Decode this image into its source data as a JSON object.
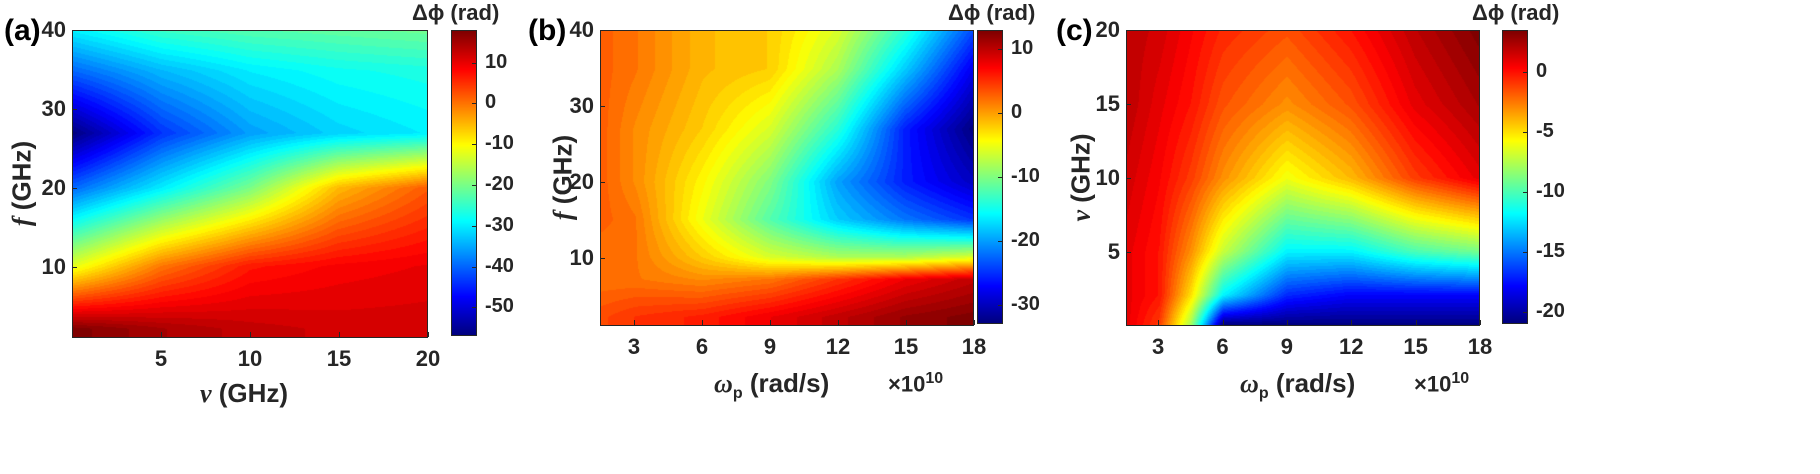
{
  "colormap": "jet",
  "chart_data": [
    {
      "panel_label": "(a)",
      "type": "heatmap",
      "xlabel_symbol": "ν",
      "xlabel_unit": " (GHz)",
      "ylabel_symbol": "f",
      "ylabel_unit": " (GHz)",
      "xlim": [
        0,
        20
      ],
      "ylim": [
        1,
        40
      ],
      "xticks": [
        5,
        10,
        15,
        20
      ],
      "yticks": [
        10,
        20,
        30,
        40
      ],
      "colorbar_label": "Δϕ (rad)",
      "clim": [
        -57,
        18
      ],
      "colorbar_ticks": [
        10,
        0,
        -10,
        -20,
        -30,
        -40,
        -50
      ],
      "x_multiplier": "",
      "z_samples": {
        "x": [
          0,
          5,
          10,
          15,
          20
        ],
        "y": [
          2,
          10,
          20,
          27,
          35,
          40
        ],
        "z": [
          [
            18,
            15,
            13,
            12,
            12
          ],
          [
            -12,
            0,
            7,
            9,
            10
          ],
          [
            -40,
            -30,
            -20,
            -5,
            2
          ],
          [
            -57,
            -44,
            -36,
            -32,
            -30
          ],
          [
            -40,
            -34,
            -30,
            -28,
            -27
          ],
          [
            -30,
            -25,
            -23,
            -22,
            -21
          ]
        ]
      }
    },
    {
      "panel_label": "(b)",
      "type": "heatmap",
      "xlabel_symbol": "ω",
      "xlabel_sub": "p",
      "xlabel_unit": " (rad/s)",
      "ylabel_symbol": "f",
      "ylabel_unit": " (GHz)",
      "xlim": [
        1.5,
        18
      ],
      "ylim": [
        1,
        40
      ],
      "xticks": [
        3,
        6,
        9,
        12,
        15,
        18
      ],
      "yticks": [
        10,
        20,
        30,
        40
      ],
      "colorbar_label": "Δϕ (rad)",
      "clim": [
        -33,
        13
      ],
      "colorbar_ticks": [
        10,
        0,
        -10,
        -20,
        -30
      ],
      "x_multiplier": "×10",
      "x_multiplier_exp": "10",
      "z_samples": {
        "x": [
          1.5,
          3,
          6,
          9,
          12,
          15,
          18
        ],
        "y": [
          2,
          7,
          10,
          15,
          20,
          27,
          35,
          40
        ],
        "z": [
          [
            4,
            5,
            6,
            8,
            10,
            12,
            13
          ],
          [
            2,
            2,
            1,
            2,
            5,
            8,
            10
          ],
          [
            2,
            2,
            -2,
            -6,
            -8,
            -8,
            -6
          ],
          [
            3,
            2,
            -5,
            -12,
            -18,
            -22,
            -25
          ],
          [
            3,
            1,
            -4,
            -10,
            -20,
            -26,
            -30
          ],
          [
            3,
            1,
            -2,
            -6,
            -14,
            -26,
            -33
          ],
          [
            3,
            2,
            -1,
            -2,
            -8,
            -18,
            -28
          ],
          [
            3,
            2,
            -1,
            -2,
            -6,
            -14,
            -24
          ]
        ]
      }
    },
    {
      "panel_label": "(c)",
      "type": "heatmap",
      "xlabel_symbol": "ω",
      "xlabel_sub": "p",
      "xlabel_unit": " (rad/s)",
      "ylabel_symbol": "ν",
      "ylabel_unit": " (GHz)",
      "xlim": [
        1.5,
        18
      ],
      "ylim": [
        0,
        20
      ],
      "xticks": [
        3,
        6,
        9,
        12,
        15,
        18
      ],
      "yticks": [
        5,
        10,
        15,
        20
      ],
      "colorbar_label": "Δϕ (rad)",
      "clim": [
        -21,
        3.5
      ],
      "colorbar_ticks": [
        0,
        -5,
        -10,
        -15,
        -20
      ],
      "x_multiplier": "×10",
      "x_multiplier_exp": "10",
      "z_samples": {
        "x": [
          1.5,
          3,
          4.5,
          6,
          9,
          12,
          15,
          18
        ],
        "y": [
          0,
          2,
          5,
          10,
          15,
          20
        ],
        "z": [
          [
            1,
            -1,
            -8,
            -21,
            -21,
            -21,
            -21,
            -21
          ],
          [
            1,
            0,
            -5,
            -12,
            -17,
            -18,
            -18,
            -18
          ],
          [
            1,
            0,
            -3,
            -7,
            -12,
            -12,
            -10,
            -9
          ],
          [
            1.5,
            0.5,
            -1,
            -3,
            -6,
            -4,
            -1,
            1
          ],
          [
            2,
            1,
            0,
            -1.5,
            -3,
            -1.5,
            1,
            2.5
          ],
          [
            2,
            1.5,
            0.5,
            -0.5,
            -1.5,
            0,
            2,
            3.5
          ]
        ]
      }
    }
  ]
}
